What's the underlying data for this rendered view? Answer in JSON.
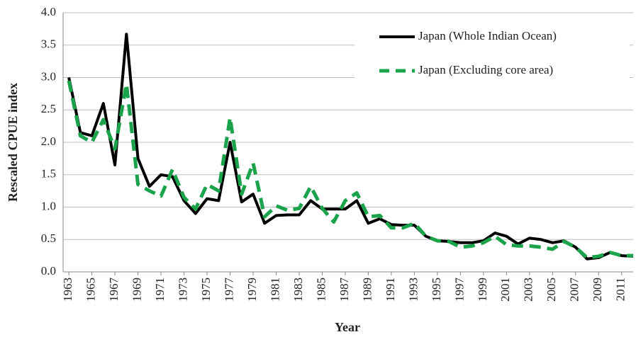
{
  "chart_data": {
    "type": "line",
    "x_label": "Year",
    "y_label": "Rescaled CPUE index",
    "x": [
      1963,
      1964,
      1965,
      1966,
      1967,
      1968,
      1969,
      1970,
      1971,
      1972,
      1973,
      1974,
      1975,
      1976,
      1977,
      1978,
      1979,
      1980,
      1981,
      1982,
      1983,
      1984,
      1985,
      1986,
      1987,
      1988,
      1989,
      1990,
      1991,
      1992,
      1993,
      1994,
      1995,
      1996,
      1997,
      1998,
      1999,
      2000,
      2001,
      2002,
      2003,
      2004,
      2005,
      2006,
      2007,
      2008,
      2009,
      2010,
      2011,
      2012
    ],
    "series": [
      {
        "name": "Japan (Whole Indian Ocean)",
        "color": "#000000",
        "dash": false,
        "values": [
          3.0,
          2.15,
          2.1,
          2.6,
          1.65,
          3.67,
          1.75,
          1.32,
          1.5,
          1.47,
          1.1,
          0.9,
          1.13,
          1.1,
          2.0,
          1.08,
          1.2,
          0.75,
          0.87,
          0.88,
          0.88,
          1.1,
          0.97,
          0.97,
          0.97,
          1.1,
          0.75,
          0.82,
          0.73,
          0.72,
          0.72,
          0.55,
          0.48,
          0.47,
          0.45,
          0.45,
          0.48,
          0.6,
          0.55,
          0.43,
          0.52,
          0.5,
          0.45,
          0.48,
          0.38,
          0.2,
          0.22,
          0.3,
          0.25,
          0.24
        ]
      },
      {
        "name": "Japan (Excluding core area)",
        "color": "#1aa34a",
        "dash": true,
        "values": [
          2.95,
          2.1,
          2.0,
          2.35,
          1.9,
          2.9,
          1.35,
          1.25,
          1.17,
          1.58,
          1.15,
          0.97,
          1.35,
          1.25,
          2.38,
          1.2,
          1.68,
          0.85,
          1.02,
          0.95,
          0.98,
          1.32,
          0.98,
          0.77,
          1.1,
          1.22,
          0.85,
          0.87,
          0.68,
          0.68,
          0.75,
          0.55,
          0.48,
          0.47,
          0.38,
          0.4,
          0.45,
          0.55,
          0.42,
          0.4,
          0.4,
          0.38,
          0.35,
          0.47,
          0.38,
          0.22,
          0.24,
          0.3,
          0.25,
          0.25
        ]
      }
    ],
    "xlim": [
      1962.5,
      2012
    ],
    "xticks": [
      1963,
      1965,
      1967,
      1969,
      1971,
      1973,
      1975,
      1977,
      1979,
      1981,
      1983,
      1985,
      1987,
      1989,
      1991,
      1993,
      1995,
      1997,
      1999,
      2001,
      2003,
      2005,
      2007,
      2009,
      2011
    ],
    "ylim": [
      0,
      4
    ],
    "yticks": [
      {
        "value": 0,
        "label": "0.0"
      },
      {
        "value": 0.5,
        "label": "0.5"
      },
      {
        "value": 1,
        "label": "1.0"
      },
      {
        "value": 1.5,
        "label": "1.5"
      },
      {
        "value": 2,
        "label": "2.0"
      },
      {
        "value": 2.5,
        "label": "2.5"
      },
      {
        "value": 3,
        "label": "3.0"
      },
      {
        "value": 3.5,
        "label": "3.5"
      },
      {
        "value": 4,
        "label": "4.0"
      }
    ],
    "grid": true,
    "legend": "upper right"
  }
}
